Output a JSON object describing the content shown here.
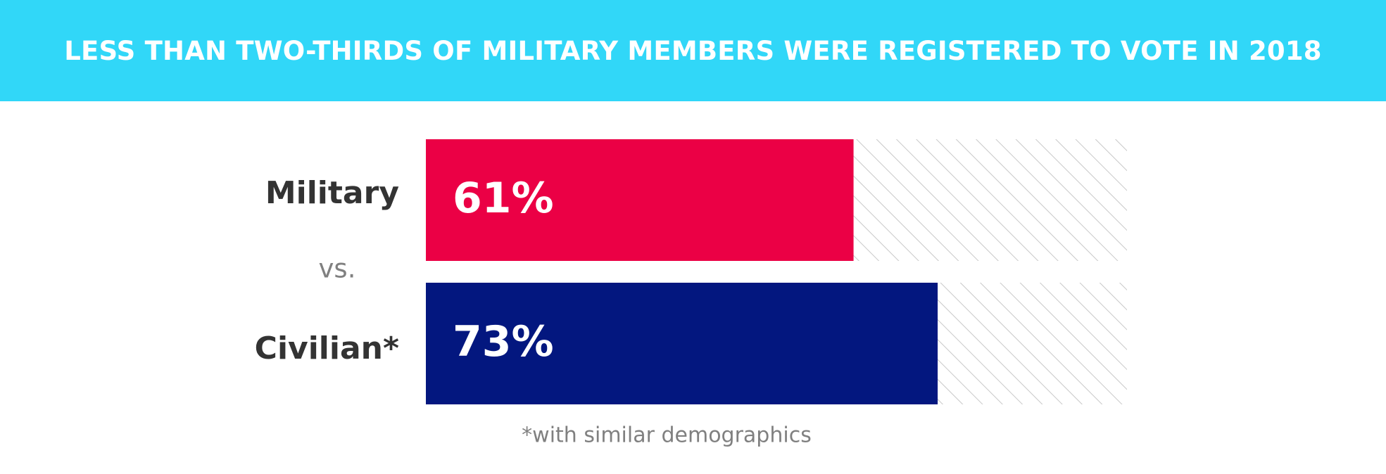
{
  "header": {
    "title": "LESS THAN TWO-THIRDS OF MILITARY MEMBERS WERE REGISTERED TO VOTE IN 2018"
  },
  "chart_data": {
    "type": "bar",
    "orientation": "horizontal",
    "title": "LESS THAN TWO-THIRDS OF MILITARY MEMBERS WERE REGISTERED TO VOTE IN 2018",
    "categories": [
      "Military",
      "Civilian*"
    ],
    "values": [
      61,
      73
    ],
    "value_labels": [
      "61%",
      "73%"
    ],
    "separator_label": "vs.",
    "xlim": [
      0,
      100
    ],
    "unit": "%",
    "grid": false,
    "footnote": "*with similar demographics",
    "colors": {
      "military": "#eb0045",
      "civilian": "#03177f",
      "remainder_hatch": "#c8c8c8",
      "banner": "#31d7f8",
      "category_text": "#333333",
      "muted_text": "#808080"
    }
  }
}
